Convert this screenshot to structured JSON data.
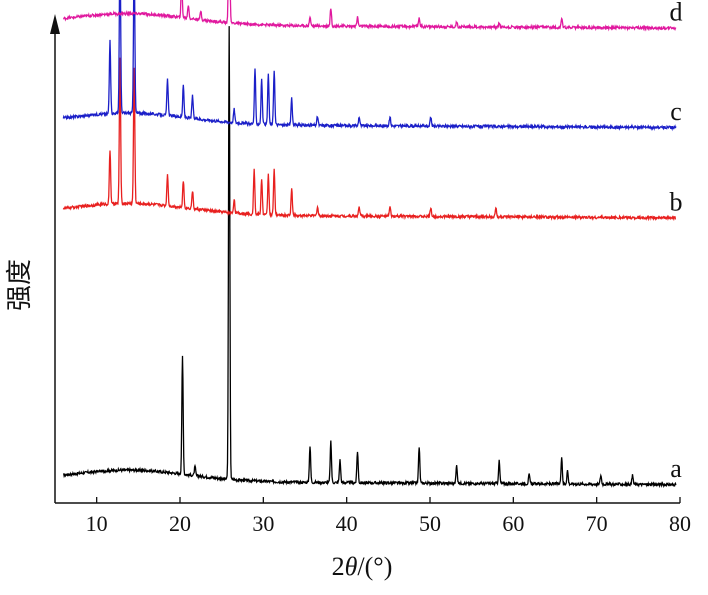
{
  "chart_data": {
    "type": "line",
    "title": "",
    "xlabel_prefix": "2",
    "xlabel_theta": "θ",
    "xlabel_suffix": "/(°)",
    "ylabel": "强度",
    "xlim": [
      5,
      80
    ],
    "x_ticks": [
      10,
      20,
      30,
      40,
      50,
      60,
      70,
      80
    ],
    "y_ticks_shown": false,
    "grid": false,
    "series": [
      {
        "name": "a",
        "color": "#000000",
        "baseline": 0.0,
        "peaks": [
          [
            20.3,
            0.26
          ],
          [
            21.8,
            0.02
          ],
          [
            25.9,
            1.0
          ],
          [
            35.6,
            0.08
          ],
          [
            38.1,
            0.09
          ],
          [
            39.2,
            0.05
          ],
          [
            41.3,
            0.07
          ],
          [
            48.7,
            0.08
          ],
          [
            53.2,
            0.04
          ],
          [
            58.3,
            0.05
          ],
          [
            61.9,
            0.02
          ],
          [
            65.8,
            0.06
          ],
          [
            66.5,
            0.03
          ],
          [
            70.5,
            0.02
          ],
          [
            74.3,
            0.02
          ]
        ]
      },
      {
        "name": "b",
        "color": "#e8201f",
        "baseline": 0.59,
        "peaks": [
          [
            11.6,
            0.12
          ],
          [
            12.8,
            0.32
          ],
          [
            14.5,
            0.3
          ],
          [
            18.5,
            0.07
          ],
          [
            20.4,
            0.06
          ],
          [
            21.5,
            0.04
          ],
          [
            26.5,
            0.03
          ],
          [
            28.9,
            0.1
          ],
          [
            29.8,
            0.08
          ],
          [
            30.6,
            0.09
          ],
          [
            31.3,
            0.1
          ],
          [
            33.4,
            0.06
          ],
          [
            36.5,
            0.02
          ],
          [
            41.5,
            0.02
          ],
          [
            45.2,
            0.02
          ],
          [
            50.1,
            0.02
          ],
          [
            57.9,
            0.02
          ]
        ]
      },
      {
        "name": "c",
        "color": "#1b1fc8",
        "baseline": 0.79,
        "peaks": [
          [
            11.6,
            0.16
          ],
          [
            12.8,
            0.38
          ],
          [
            14.5,
            0.35
          ],
          [
            18.5,
            0.08
          ],
          [
            20.4,
            0.07
          ],
          [
            21.5,
            0.05
          ],
          [
            26.5,
            0.03
          ],
          [
            29.0,
            0.12
          ],
          [
            29.8,
            0.1
          ],
          [
            30.6,
            0.11
          ],
          [
            31.3,
            0.12
          ],
          [
            33.4,
            0.06
          ],
          [
            36.5,
            0.02
          ],
          [
            41.5,
            0.02
          ],
          [
            45.2,
            0.02
          ],
          [
            50.1,
            0.02
          ]
        ]
      },
      {
        "name": "d",
        "color": "#e0189e",
        "baseline": 1.01,
        "peaks": [
          [
            20.2,
            0.08
          ],
          [
            21.0,
            0.03
          ],
          [
            22.5,
            0.02
          ],
          [
            25.9,
            0.34
          ],
          [
            35.6,
            0.02
          ],
          [
            38.1,
            0.04
          ],
          [
            41.3,
            0.02
          ],
          [
            48.7,
            0.02
          ],
          [
            53.2,
            0.01
          ],
          [
            58.3,
            0.01
          ],
          [
            65.8,
            0.02
          ]
        ]
      }
    ]
  }
}
